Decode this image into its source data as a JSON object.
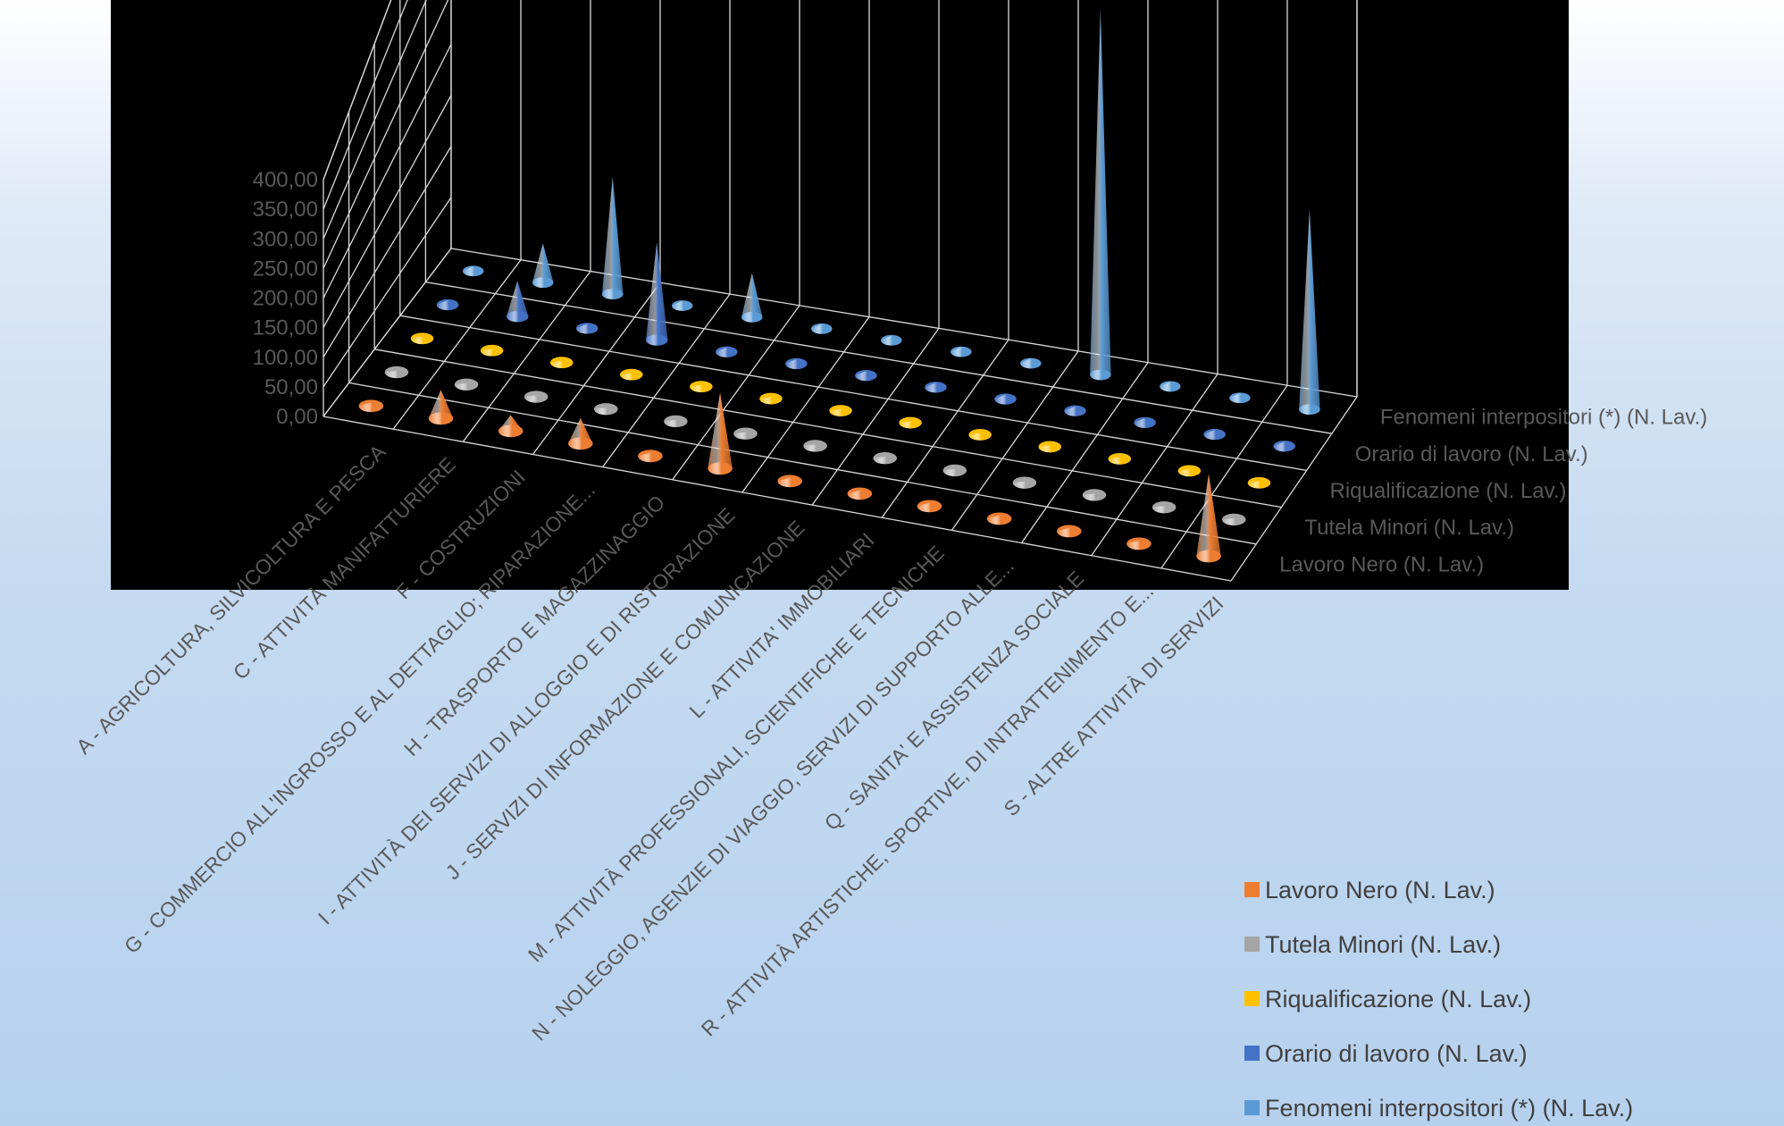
{
  "chart_data": {
    "type": "bar",
    "shape": "cone",
    "three_d": true,
    "categories": [
      "A - AGRICOLTURA, SILVICOLTURA E PESCA",
      "C - ATTIVITÀ MANIFATTURIERE",
      "F - COSTRUZIONI",
      "G - COMMERCIO ALL'INGROSSO E AL DETTAGLIO; RIPARAZIONE...",
      "H - TRASPORTO E MAGAZZINAGGIO",
      "I - ATTIVITÀ DEI SERVIZI DI ALLOGGIO E DI RISTORAZIONE",
      "J - SERVIZI DI INFORMAZIONE E COMUNICAZIONE",
      "L - ATTIVITA' IMMOBILIARI",
      "M - ATTIVITÀ PROFESSIONALI, SCIENTIFICHE E TECNICHE",
      "N - NOLEGGIO, AGENZIE DI VIAGGIO, SERVIZI DI SUPPORTO ALLE...",
      "Q - SANITA' E ASSISTENZA SOCIALE",
      "R - ATTIVITÀ ARTISTICHE, SPORTIVE, DI INTRATTENIMENTO E...",
      "S - ALTRE ATTIVITÀ DI SERVIZI"
    ],
    "series": [
      {
        "name": "Lavoro Nero (N. Lav.)",
        "color": "#ED7D31",
        "values": [
          5,
          45,
          25,
          40,
          5,
          120,
          5,
          5,
          5,
          5,
          5,
          5,
          130
        ]
      },
      {
        "name": "Tutela Minori (N. Lav.)",
        "color": "#A5A5A5",
        "values": [
          2,
          2,
          2,
          2,
          2,
          2,
          2,
          2,
          2,
          2,
          2,
          2,
          2
        ]
      },
      {
        "name": "Riqualificazione (N. Lav.)",
        "color": "#FFC000",
        "values": [
          2,
          2,
          2,
          2,
          2,
          2,
          2,
          2,
          2,
          2,
          2,
          2,
          2
        ]
      },
      {
        "name": "Orario di lavoro (N. Lav.)",
        "color": "#4472C4",
        "values": [
          5,
          40,
          5,
          110,
          5,
          5,
          5,
          5,
          5,
          5,
          5,
          5,
          5
        ]
      },
      {
        "name": "Fenomeni interpositori (*) (N. Lav.)",
        "color": "#5B9BD5",
        "values": [
          5,
          40,
          120,
          5,
          45,
          5,
          5,
          5,
          5,
          375,
          5,
          5,
          205
        ]
      }
    ],
    "yticks": [
      "0,00",
      "50,00",
      "100,00",
      "150,00",
      "200,00",
      "250,00",
      "300,00",
      "350,00",
      "400,00"
    ],
    "ylim": [
      0,
      400
    ],
    "title": "",
    "xlabel": "",
    "ylabel": "",
    "grid": true,
    "legend_position": "bottom-right",
    "plot_background": "#000000"
  }
}
